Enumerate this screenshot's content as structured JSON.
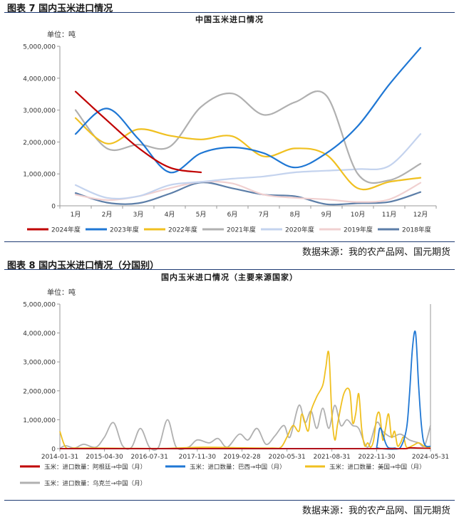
{
  "figure1": {
    "label": "图表 7 国内玉米进口情况",
    "chart_title": "中国玉米进口情况",
    "unit": "单位：吨",
    "source": "数据来源：我的农产品网、国元期货"
  },
  "figure2": {
    "label": "图表 8 国内玉米进口情况（分国别）",
    "chart_title": "国内玉米进口情况（主要来源国家）",
    "unit": "单位：吨",
    "source": "数据来源：我的农产品网、国元期货"
  },
  "chart_data": [
    {
      "type": "line",
      "title": "中国玉米进口情况",
      "unit": "单位：吨",
      "categories": [
        "1月",
        "2月",
        "3月",
        "4月",
        "5月",
        "6月",
        "7月",
        "8月",
        "9月",
        "10月",
        "11月",
        "12月"
      ],
      "y_ticks": [
        "0",
        "1,000,000",
        "2,000,000",
        "3,000,000",
        "4,000,000",
        "5,000,000"
      ],
      "ylim": [
        0,
        5000000
      ],
      "legend_position": "bottom",
      "series": [
        {
          "name": "2024年度",
          "color": "#c00000",
          "values": [
            3580000,
            2680000,
            1820000,
            1200000,
            1050000,
            null,
            null,
            null,
            null,
            null,
            null,
            null
          ]
        },
        {
          "name": "2023年度",
          "color": "#1f77d4",
          "values": [
            2250000,
            3050000,
            2100000,
            1050000,
            1650000,
            1830000,
            1650000,
            1200000,
            1650000,
            2500000,
            3800000,
            4950000
          ]
        },
        {
          "name": "2022年度",
          "color": "#f0c020",
          "values": [
            2750000,
            1950000,
            2400000,
            2200000,
            2080000,
            2180000,
            1550000,
            1800000,
            1600000,
            550000,
            750000,
            880000
          ]
        },
        {
          "name": "2021年度",
          "color": "#b0b0b0",
          "values": [
            3000000,
            1800000,
            1920000,
            1850000,
            3100000,
            3520000,
            2850000,
            3250000,
            3450000,
            1000000,
            800000,
            1320000
          ]
        },
        {
          "name": "2020年度",
          "color": "#c4d3ee",
          "values": [
            650000,
            250000,
            300000,
            650000,
            750000,
            850000,
            920000,
            1050000,
            1100000,
            1150000,
            1250000,
            2250000
          ]
        },
        {
          "name": "2019年度",
          "color": "#f0d0d0",
          "values": [
            350000,
            180000,
            300000,
            550000,
            750000,
            700000,
            350000,
            250000,
            200000,
            120000,
            200000,
            720000
          ]
        },
        {
          "name": "2018年度",
          "color": "#5c7ea8",
          "values": [
            400000,
            100000,
            80000,
            380000,
            730000,
            550000,
            350000,
            300000,
            50000,
            80000,
            120000,
            430000
          ]
        }
      ]
    },
    {
      "type": "line",
      "title": "国内玉米进口情况（主要来源国家）",
      "unit": "单位：吨",
      "x_ticks": [
        "2014-01-31",
        "2015-04-30",
        "2016-07-31",
        "2017-11-30",
        "2019-02-28",
        "2020-05-31",
        "2021-08-31",
        "2022-11-30",
        "2024-05-31"
      ],
      "y_ticks": [
        "0",
        "1,000,000",
        "2,000,000",
        "3,000,000",
        "4,000,000",
        "5,000,000"
      ],
      "ylim": [
        0,
        5000000
      ],
      "legend_position": "bottom",
      "series": [
        {
          "name": "玉米：进口数量：阿根廷→中国（月）",
          "color": "#c00000",
          "x": [
            "2014-01-31",
            "2015-06-30",
            "2017-01-31",
            "2018-06-30",
            "2019-12-31",
            "2021-06-30",
            "2022-06-30",
            "2023-06-30",
            "2023-09-30",
            "2023-10-31",
            "2024-01-31",
            "2024-05-31"
          ],
          "values": [
            0,
            0,
            0,
            0,
            0,
            0,
            0,
            0,
            0,
            30000,
            20000,
            10000
          ]
        },
        {
          "name": "玉米：进口数量：巴西→中国（月）",
          "color": "#1f77d4",
          "x": [
            "2014-01-31",
            "2022-10-31",
            "2022-11-30",
            "2022-12-31",
            "2023-01-31",
            "2023-02-28",
            "2023-03-31",
            "2023-05-31",
            "2023-07-31",
            "2023-09-30",
            "2023-10-31",
            "2023-11-30",
            "2023-12-31",
            "2024-01-31",
            "2024-02-29",
            "2024-03-31",
            "2024-05-31"
          ],
          "values": [
            0,
            0,
            50000,
            700000,
            500000,
            200000,
            30000,
            20000,
            50000,
            700000,
            1900000,
            3500000,
            4000000,
            2200000,
            800000,
            150000,
            80000
          ]
        },
        {
          "name": "玉米：进口数量：美国→中国（月）",
          "color": "#f0c020",
          "x": [
            "2014-01-31",
            "2014-03-31",
            "2014-06-30",
            "2015-01-31",
            "2016-01-31",
            "2017-01-31",
            "2018-01-31",
            "2019-01-31",
            "2019-12-31",
            "2020-03-31",
            "2020-05-31",
            "2020-07-31",
            "2020-09-30",
            "2020-10-31",
            "2020-12-31",
            "2021-01-31",
            "2021-03-31",
            "2021-05-31",
            "2021-06-30",
            "2021-07-31",
            "2021-08-31",
            "2021-09-30",
            "2021-10-31",
            "2021-12-31",
            "2022-02-28",
            "2022-03-31",
            "2022-04-30",
            "2022-05-31",
            "2022-06-30",
            "2022-07-31",
            "2022-08-31",
            "2022-09-30",
            "2022-10-31",
            "2022-11-30",
            "2022-12-31",
            "2023-01-31",
            "2023-02-28",
            "2023-03-31",
            "2023-04-30",
            "2023-05-31",
            "2023-06-30",
            "2023-07-31",
            "2023-08-31",
            "2023-09-30",
            "2023-11-30",
            "2024-01-31",
            "2024-03-31",
            "2024-05-31"
          ],
          "values": [
            600000,
            50000,
            20000,
            20000,
            10000,
            10000,
            50000,
            30000,
            20000,
            50000,
            400000,
            800000,
            600000,
            1200000,
            600000,
            1300000,
            1800000,
            2200000,
            2800000,
            3300000,
            1200000,
            300000,
            900000,
            1900000,
            2000000,
            900000,
            1200000,
            1900000,
            700000,
            100000,
            200000,
            50000,
            300000,
            1100000,
            1200000,
            300000,
            700000,
            1200000,
            400000,
            600000,
            100000,
            200000,
            400000,
            50000,
            100000,
            200000,
            80000,
            30000
          ]
        },
        {
          "name": "玉米：进口数量：乌克兰→中国（月）",
          "color": "#b0b0b0",
          "x": [
            "2014-01-31",
            "2014-03-31",
            "2014-06-30",
            "2014-09-30",
            "2015-01-31",
            "2015-04-30",
            "2015-07-31",
            "2015-10-31",
            "2016-01-31",
            "2016-04-30",
            "2016-07-31",
            "2016-10-31",
            "2017-01-31",
            "2017-04-30",
            "2017-08-31",
            "2017-11-30",
            "2018-03-31",
            "2018-06-30",
            "2018-09-30",
            "2019-01-31",
            "2019-04-30",
            "2019-07-31",
            "2019-10-31",
            "2020-01-31",
            "2020-04-30",
            "2020-06-30",
            "2020-09-30",
            "2020-11-30",
            "2021-01-31",
            "2021-03-31",
            "2021-05-31",
            "2021-07-31",
            "2021-09-30",
            "2021-11-30",
            "2022-01-31",
            "2022-03-31",
            "2022-05-31",
            "2022-08-31",
            "2022-11-30",
            "2023-01-31",
            "2023-04-30",
            "2023-07-31",
            "2023-10-31",
            "2024-01-31",
            "2024-03-31",
            "2024-05-31"
          ],
          "values": [
            10000,
            100000,
            20000,
            150000,
            50000,
            400000,
            900000,
            100000,
            50000,
            700000,
            50000,
            50000,
            1000000,
            50000,
            50000,
            300000,
            200000,
            350000,
            50000,
            500000,
            300000,
            700000,
            150000,
            450000,
            800000,
            400000,
            1500000,
            900000,
            1300000,
            700000,
            1400000,
            700000,
            1500000,
            800000,
            1000000,
            800000,
            700000,
            50000,
            900000,
            600000,
            400000,
            500000,
            300000,
            200000,
            100000,
            800000
          ]
        }
      ]
    }
  ]
}
